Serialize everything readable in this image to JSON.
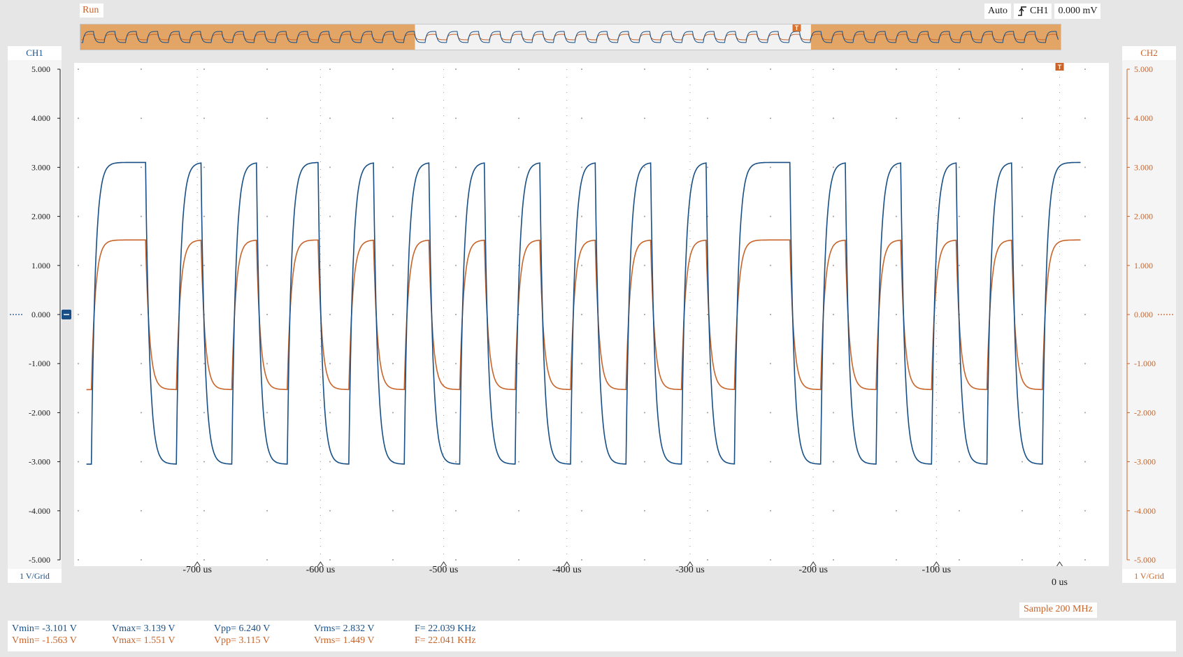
{
  "toolbar": {
    "run_label": "Run"
  },
  "trigger": {
    "mode": "Auto",
    "source": "CH1",
    "level": "0.000 mV",
    "edge_icon": "rising-edge-icon"
  },
  "colors": {
    "ch1": "#174f86",
    "ch2": "#c8642a",
    "overview_fill": "#e2a566"
  },
  "ch1": {
    "label": "CH1",
    "scale": "1 V/Grid",
    "ticks": [
      "5.000",
      "4.000",
      "3.000",
      "2.000",
      "1.000",
      "0.000",
      "-1.000",
      "-2.000",
      "-3.000",
      "-4.000",
      "-5.000"
    ]
  },
  "ch2": {
    "label": "CH2",
    "scale": "1 V/Grid",
    "ticks": [
      "5.000",
      "4.000",
      "3.000",
      "2.000",
      "1.000",
      "0.000",
      "-1.000",
      "-2.000",
      "-3.000",
      "-4.000",
      "-5.000"
    ]
  },
  "xaxis": {
    "labels": [
      "-700 us",
      "-600 us",
      "-500 us",
      "-400 us",
      "-300 us",
      "-200 us",
      "-100 us"
    ],
    "zero_label": "0 us"
  },
  "status": {
    "sample": "Sample 200 MHz"
  },
  "measurements": {
    "ch1": {
      "vmin": "Vmin= -3.101 V",
      "vmax": "Vmax= 3.139 V",
      "vpp": "Vpp= 6.240 V",
      "vrms": "Vrms= 2.832 V",
      "freq": "F= 22.039 KHz"
    },
    "ch2": {
      "vmin": "Vmin= -1.563 V",
      "vmax": "Vmax= 1.551 V",
      "vpp": "Vpp= 3.115 V",
      "vrms": "Vrms= 1.449 V",
      "freq": "F= 22.041 KHz"
    }
  },
  "chart_data": {
    "type": "line",
    "x_unit": "us",
    "xlim": [
      -800,
      40
    ],
    "ylim": [
      -5,
      5
    ],
    "grid": true,
    "series": [
      {
        "name": "CH1",
        "high": 3.1,
        "low": -3.05,
        "rise_edges": [
          -786,
          -717,
          -672,
          -627,
          -577,
          -532,
          -487,
          -442,
          -397,
          -352,
          -307,
          -264,
          -194,
          -149,
          -104,
          -59,
          -14
        ],
        "fall_edges": [
          -742,
          -697,
          -652,
          -602,
          -557,
          -512,
          -467,
          -422,
          -377,
          -332,
          -287,
          -219,
          -174,
          -129,
          -84,
          -39
        ]
      },
      {
        "name": "CH2",
        "high": 1.52,
        "low": -1.53,
        "rise_edges": [
          -786,
          -717,
          -672,
          -627,
          -577,
          -532,
          -487,
          -442,
          -397,
          -352,
          -307,
          -264,
          -194,
          -149,
          -104,
          -59,
          -14
        ],
        "fall_edges": [
          -742,
          -697,
          -652,
          -602,
          -557,
          -512,
          -467,
          -422,
          -377,
          -332,
          -287,
          -219,
          -174,
          -129,
          -84,
          -39
        ]
      }
    ]
  }
}
